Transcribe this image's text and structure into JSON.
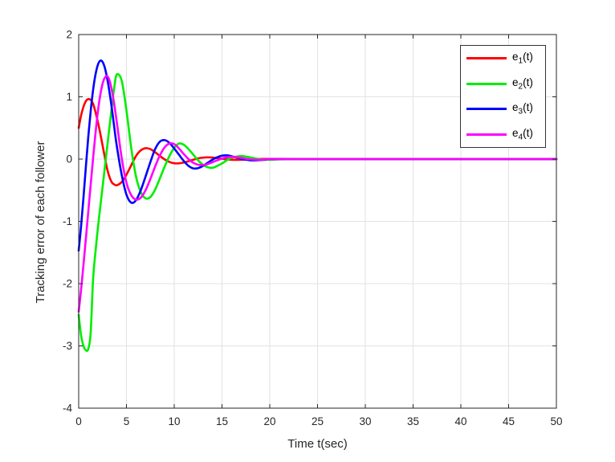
{
  "figure": {
    "background": "#ffffff"
  },
  "colors": {
    "axis_box": "#262626",
    "grid": "#e2e2e2",
    "tick_label": "#262626",
    "legend_border": "#333333",
    "legend_background": "#ffffff"
  },
  "chart_data": {
    "type": "line",
    "title": "",
    "xlabel": "Time t(sec)",
    "ylabel": "Tracking error of each follower",
    "xlim": [
      0,
      50
    ],
    "ylim": [
      -4,
      2
    ],
    "xticks": [
      0,
      5,
      10,
      15,
      20,
      25,
      30,
      35,
      40,
      45,
      50
    ],
    "yticks": [
      -4,
      -3,
      -2,
      -1,
      0,
      1,
      2
    ],
    "grid": true,
    "legend_position": "top-right",
    "x": [
      0,
      0.25,
      0.5,
      0.75,
      1,
      1.25,
      1.5,
      1.75,
      2,
      2.25,
      2.5,
      2.75,
      3,
      3.25,
      3.5,
      3.75,
      4,
      4.5,
      5,
      5.5,
      6,
      6.5,
      7,
      7.5,
      8,
      8.5,
      9,
      9.5,
      10,
      10.5,
      11,
      11.5,
      12,
      12.5,
      13,
      13.5,
      14,
      14.5,
      15,
      15.5,
      16,
      16.5,
      17,
      17.5,
      18,
      18.5,
      19,
      19.5,
      20,
      22,
      25,
      30,
      35,
      40,
      45,
      50
    ],
    "series": [
      {
        "name": "e1",
        "label_base": "e",
        "label_sub": "1",
        "label_rest": "(t)",
        "color": "#ff0000",
        "y": [
          0.5,
          0.7,
          0.84,
          0.93,
          0.965,
          0.95,
          0.89,
          0.76,
          0.6,
          0.42,
          0.22,
          0.02,
          -0.17,
          -0.3,
          -0.38,
          -0.41,
          -0.42,
          -0.37,
          -0.25,
          -0.1,
          0.05,
          0.14,
          0.175,
          0.16,
          0.11,
          0.05,
          -0.005,
          -0.046,
          -0.067,
          -0.068,
          -0.055,
          -0.034,
          -0.01,
          0.011,
          0.024,
          0.029,
          0.025,
          0.016,
          0.006,
          -0.004,
          -0.01,
          -0.012,
          -0.011,
          -0.008,
          -0.004,
          0.0,
          0.002,
          0.003,
          0.003,
          0.001,
          0,
          0,
          0,
          0,
          0,
          0
        ]
      },
      {
        "name": "e2",
        "label_base": "e",
        "label_sub": "2",
        "label_rest": "(t)",
        "color": "#00ee00",
        "y": [
          -2.5,
          -2.83,
          -3.0,
          -3.07,
          -3.05,
          -2.8,
          -1.95,
          -1.5,
          -1.12,
          -0.78,
          -0.45,
          -0.12,
          0.22,
          0.55,
          0.88,
          1.18,
          1.36,
          1.26,
          0.78,
          0.18,
          -0.28,
          -0.53,
          -0.63,
          -0.61,
          -0.49,
          -0.31,
          -0.12,
          0.05,
          0.18,
          0.25,
          0.23,
          0.16,
          0.07,
          -0.02,
          -0.09,
          -0.13,
          -0.14,
          -0.11,
          -0.07,
          -0.02,
          0.02,
          0.04,
          0.05,
          0.04,
          0.025,
          0.01,
          0.0,
          -0.01,
          -0.01,
          0,
          0,
          0,
          0,
          0,
          0,
          0
        ]
      },
      {
        "name": "e3",
        "label_base": "e",
        "label_sub": "3",
        "label_rest": "(t)",
        "color": "#0000ff",
        "y": [
          -1.47,
          -1.08,
          -0.62,
          -0.13,
          0.35,
          0.76,
          1.1,
          1.35,
          1.51,
          1.58,
          1.56,
          1.46,
          1.28,
          1.05,
          0.78,
          0.48,
          0.2,
          -0.25,
          -0.57,
          -0.7,
          -0.66,
          -0.5,
          -0.28,
          -0.05,
          0.16,
          0.28,
          0.305,
          0.26,
          0.17,
          0.07,
          -0.03,
          -0.11,
          -0.15,
          -0.145,
          -0.11,
          -0.06,
          -0.01,
          0.03,
          0.055,
          0.06,
          0.045,
          0.025,
          0.005,
          -0.01,
          -0.02,
          -0.02,
          -0.015,
          -0.01,
          0.0,
          0,
          0,
          0,
          0,
          0,
          0,
          0
        ]
      },
      {
        "name": "e4",
        "label_base": "e",
        "label_sub": "4",
        "label_rest": "(t)",
        "color": "#ff00ff",
        "y": [
          -2.45,
          -2.1,
          -1.7,
          -1.28,
          -0.85,
          -0.42,
          0.0,
          0.4,
          0.75,
          1.02,
          1.21,
          1.31,
          1.33,
          1.25,
          1.08,
          0.85,
          0.58,
          0.02,
          -0.38,
          -0.58,
          -0.65,
          -0.62,
          -0.5,
          -0.32,
          -0.12,
          0.06,
          0.19,
          0.25,
          0.24,
          0.17,
          0.08,
          0.0,
          -0.06,
          -0.09,
          -0.095,
          -0.08,
          -0.05,
          -0.02,
          0.01,
          0.03,
          0.035,
          0.03,
          0.02,
          0.005,
          -0.005,
          -0.01,
          -0.01,
          -0.005,
          0.0,
          0,
          0,
          0,
          0,
          0,
          0,
          0
        ]
      }
    ]
  }
}
